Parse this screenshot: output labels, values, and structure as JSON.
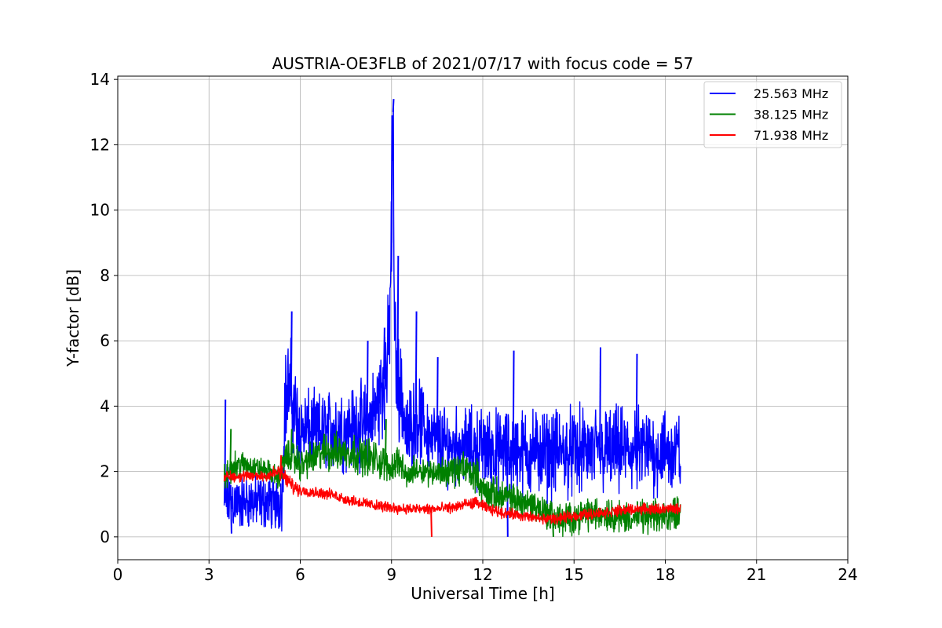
{
  "chart_data": {
    "type": "line",
    "title": "AUSTRIA-OE3FLB of 2021/07/17 with focus code = 57",
    "xlabel": "Universal Time [h]",
    "ylabel": "Y-factor [dB]",
    "xlim": [
      0,
      24
    ],
    "ylim": [
      -0.7,
      14.1
    ],
    "xticks": [
      0,
      3,
      6,
      9,
      12,
      15,
      18,
      21,
      24
    ],
    "xtick_labels": [
      "0",
      "3",
      "6",
      "9",
      "12",
      "15",
      "18",
      "21",
      "24"
    ],
    "yticks": [
      0,
      2,
      4,
      6,
      8,
      10,
      12,
      14
    ],
    "ytick_labels": [
      "0",
      "2",
      "4",
      "6",
      "8",
      "10",
      "12",
      "14"
    ],
    "grid": true,
    "legend_position": "top-right",
    "series": [
      {
        "name": "25.563 MHz",
        "color": "#0000ff",
        "x": [
          3.5,
          3.6,
          3.8,
          4.0,
          4.3,
          4.6,
          4.9,
          5.2,
          5.4,
          5.5,
          5.6,
          5.7,
          5.8,
          5.9,
          6.0,
          6.3,
          6.6,
          7.0,
          7.4,
          7.8,
          8.1,
          8.3,
          8.5,
          8.7,
          8.9,
          9.0,
          9.05,
          9.1,
          9.2,
          9.35,
          9.5,
          9.65,
          9.8,
          10.0,
          10.2,
          10.4,
          10.6,
          10.8,
          11.0,
          11.4,
          11.8,
          12.2,
          12.6,
          13.0,
          13.4,
          13.8,
          14.2,
          14.6,
          15.0,
          15.4,
          15.8,
          16.2,
          16.6,
          17.0,
          17.4,
          17.8,
          18.2,
          18.5
        ],
        "y": [
          1.0,
          1.2,
          1.1,
          1.0,
          1.1,
          1.0,
          1.1,
          1.0,
          1.2,
          4.2,
          4.5,
          4.3,
          4.0,
          3.5,
          3.3,
          3.2,
          3.2,
          3.3,
          3.3,
          3.4,
          3.4,
          3.5,
          4.0,
          4.6,
          5.5,
          9.0,
          13.0,
          6.0,
          4.8,
          4.2,
          3.0,
          3.4,
          3.8,
          3.4,
          3.2,
          3.0,
          2.9,
          2.8,
          2.8,
          2.8,
          2.7,
          2.7,
          2.6,
          2.6,
          2.6,
          2.6,
          2.5,
          2.6,
          2.6,
          2.6,
          2.6,
          2.6,
          2.6,
          2.6,
          2.6,
          2.6,
          2.6,
          2.6
        ],
        "amp": [
          1.0,
          1.2,
          1.1,
          1.0,
          1.0,
          1.0,
          1.0,
          1.0,
          1.2,
          1.8,
          2.0,
          2.0,
          1.8,
          1.7,
          1.6,
          1.5,
          1.4,
          1.5,
          1.5,
          1.5,
          1.6,
          1.6,
          1.8,
          2.0,
          2.2,
          2.4,
          2.0,
          2.2,
          2.0,
          1.8,
          1.4,
          1.6,
          1.6,
          1.5,
          1.4,
          1.3,
          1.4,
          1.4,
          1.4,
          1.4,
          1.5,
          1.5,
          1.5,
          1.6,
          1.6,
          1.6,
          1.6,
          1.6,
          1.6,
          1.6,
          1.6,
          1.6,
          1.6,
          1.6,
          1.6,
          1.6,
          1.6,
          1.6
        ],
        "spikes": [
          [
            3.52,
            4.2
          ],
          [
            3.6,
            0.6
          ],
          [
            3.72,
            0.1
          ],
          [
            5.7,
            6.9
          ],
          [
            8.2,
            6.0
          ],
          [
            8.75,
            6.4
          ],
          [
            9.0,
            12.9
          ],
          [
            9.05,
            13.4
          ],
          [
            9.2,
            8.6
          ],
          [
            9.8,
            6.9
          ],
          [
            10.5,
            5.5
          ],
          [
            12.8,
            0.0
          ],
          [
            13.0,
            5.7
          ],
          [
            15.85,
            5.8
          ],
          [
            17.05,
            5.6
          ]
        ]
      },
      {
        "name": "38.125 MHz",
        "color": "#008000",
        "x": [
          3.5,
          3.8,
          4.2,
          4.6,
          5.0,
          5.3,
          5.5,
          5.7,
          6.0,
          6.4,
          6.8,
          7.2,
          7.6,
          8.0,
          8.4,
          8.8,
          9.0,
          9.2,
          9.5,
          9.8,
          10.2,
          10.6,
          11.0,
          11.4,
          11.8,
          12.0,
          12.4,
          12.8,
          13.2,
          13.6,
          14.0,
          14.3,
          14.6,
          15.0,
          15.4,
          15.8,
          16.2,
          16.6,
          17.0,
          17.4,
          17.8,
          18.2,
          18.5
        ],
        "y": [
          1.7,
          2.2,
          2.2,
          2.1,
          2.0,
          1.8,
          2.4,
          2.5,
          2.2,
          2.4,
          2.6,
          2.6,
          2.6,
          2.5,
          2.4,
          2.2,
          2.1,
          2.4,
          1.8,
          2.1,
          2.0,
          2.0,
          2.0,
          2.1,
          1.9,
          1.4,
          1.3,
          1.2,
          1.1,
          1.0,
          0.8,
          0.6,
          0.5,
          0.6,
          0.7,
          0.7,
          0.7,
          0.6,
          0.6,
          0.6,
          0.6,
          0.7,
          0.8
        ],
        "amp": [
          0.6,
          0.5,
          0.5,
          0.4,
          0.4,
          0.4,
          0.6,
          0.6,
          0.6,
          0.6,
          0.7,
          0.7,
          0.7,
          0.7,
          0.7,
          0.6,
          0.5,
          0.6,
          0.4,
          0.5,
          0.5,
          0.5,
          0.6,
          0.6,
          0.6,
          0.6,
          0.6,
          0.6,
          0.6,
          0.6,
          0.6,
          0.6,
          0.6,
          0.6,
          0.6,
          0.6,
          0.6,
          0.6,
          0.6,
          0.6,
          0.6,
          0.6,
          0.6
        ],
        "spikes": [
          [
            3.7,
            3.3
          ],
          [
            5.7,
            3.3
          ],
          [
            8.8,
            3.6
          ],
          [
            14.3,
            0.0
          ]
        ]
      },
      {
        "name": "71.938 MHz",
        "color": "#ff0000",
        "x": [
          3.5,
          4.0,
          4.5,
          5.0,
          5.3,
          5.5,
          5.7,
          5.9,
          6.2,
          6.6,
          7.0,
          7.5,
          8.0,
          8.5,
          9.0,
          9.5,
          10.0,
          10.5,
          11.0,
          11.5,
          11.8,
          12.2,
          12.6,
          13.0,
          13.5,
          14.0,
          14.5,
          15.0,
          15.5,
          16.0,
          16.5,
          17.0,
          17.5,
          18.0,
          18.5
        ],
        "y": [
          1.85,
          1.85,
          1.85,
          1.9,
          2.0,
          1.8,
          1.6,
          1.45,
          1.4,
          1.35,
          1.3,
          1.15,
          1.05,
          0.95,
          0.9,
          0.85,
          0.85,
          0.85,
          0.9,
          1.0,
          1.05,
          0.85,
          0.75,
          0.7,
          0.6,
          0.55,
          0.55,
          0.65,
          0.7,
          0.75,
          0.8,
          0.85,
          0.85,
          0.85,
          0.85
        ],
        "amp": [
          0.2,
          0.2,
          0.2,
          0.25,
          0.3,
          0.3,
          0.3,
          0.25,
          0.2,
          0.2,
          0.2,
          0.2,
          0.2,
          0.2,
          0.2,
          0.2,
          0.2,
          0.2,
          0.2,
          0.2,
          0.2,
          0.2,
          0.2,
          0.2,
          0.2,
          0.2,
          0.2,
          0.2,
          0.2,
          0.2,
          0.2,
          0.2,
          0.2,
          0.2,
          0.2
        ],
        "spikes": [
          [
            5.35,
            2.5
          ],
          [
            10.3,
            0.0
          ]
        ]
      }
    ]
  }
}
